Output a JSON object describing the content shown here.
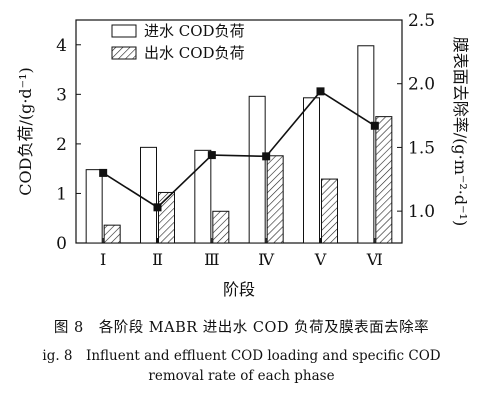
{
  "chart_data": {
    "type": "bar",
    "categories": [
      "Ⅰ",
      "Ⅱ",
      "Ⅲ",
      "Ⅳ",
      "Ⅴ",
      "Ⅵ"
    ],
    "xlabel": "阶段",
    "ylabel": "COD负荷/(g·d⁻¹)",
    "y2label": "膜表面去除率/(g·m⁻²·d⁻¹)",
    "ylim": [
      0,
      4.5
    ],
    "y2lim": [
      0.75,
      2.5
    ],
    "yticks": [
      "0",
      "1",
      "2",
      "3",
      "4"
    ],
    "y2ticks": [
      "1.0",
      "1.5",
      "2.0",
      "2.5"
    ],
    "legend_position": "top-left",
    "series": [
      {
        "name": "进水 COD负荷",
        "kind": "bar",
        "fill": "open",
        "values": [
          1.48,
          1.93,
          1.87,
          2.96,
          2.93,
          3.98
        ]
      },
      {
        "name": "出水 COD负荷",
        "kind": "bar",
        "fill": "hatched",
        "values": [
          0.36,
          1.02,
          0.64,
          1.76,
          1.29,
          2.55
        ]
      },
      {
        "kind": "line",
        "marker": "square",
        "axis": "right",
        "values": [
          1.3,
          1.03,
          1.44,
          1.43,
          1.94,
          1.67
        ]
      }
    ]
  },
  "caption": {
    "cn": "图 8　各阶段 MABR 进出水 COD 负荷及膜表面去除率",
    "en_line1": "ig. 8　Influent and effluent COD loading and specific COD",
    "en_line2": "removal rate of each phase"
  }
}
